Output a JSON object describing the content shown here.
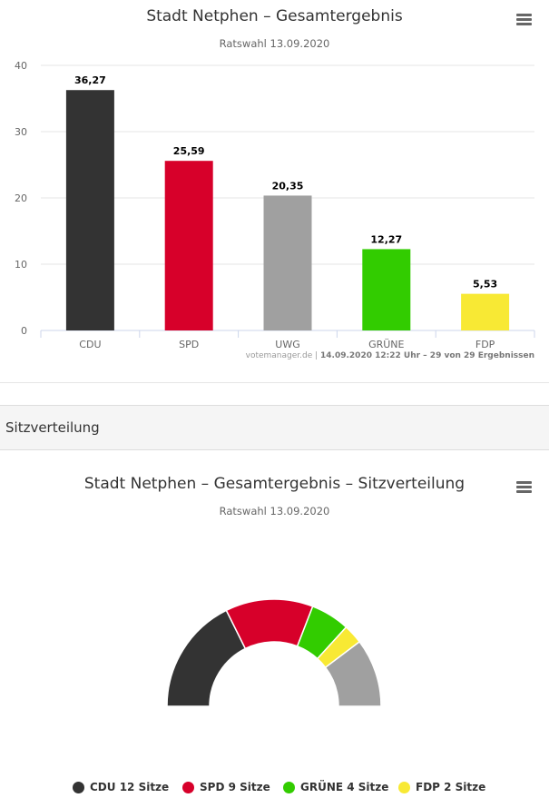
{
  "bar_panel": {
    "title": "Stadt Netphen – Gesamtergebnis",
    "subtitle": "Ratswahl 13.09.2020",
    "credits_site": "votemanager.de",
    "credits_sep": " | ",
    "credits_info": "14.09.2020 12:22 Uhr – 29 von 29 Ergebnissen",
    "menu_icon": "hamburger-menu-icon"
  },
  "section": {
    "label": "Sitzverteilung"
  },
  "seat_panel": {
    "title": "Stadt Netphen – Gesamtergebnis – Sitzverteilung",
    "subtitle": "Ratswahl 13.09.2020",
    "menu_icon": "hamburger-menu-icon"
  },
  "chart_data": [
    {
      "type": "bar",
      "title": "Stadt Netphen – Gesamtergebnis",
      "subtitle": "Ratswahl 13.09.2020",
      "categories": [
        "CDU",
        "SPD",
        "UWG",
        "GRÜNE",
        "FDP"
      ],
      "values": [
        36.27,
        25.59,
        20.35,
        12.27,
        5.53
      ],
      "data_labels": [
        "36,27",
        "25,59",
        "20,35",
        "12,27",
        "5,53"
      ],
      "colors": [
        "#333333",
        "#d7002a",
        "#a0a0a0",
        "#32cc00",
        "#f8e934"
      ],
      "ylim": [
        0,
        40
      ],
      "yticks": [
        0,
        10,
        20,
        30,
        40
      ],
      "grid": true,
      "legend": "none"
    },
    {
      "type": "pie",
      "variant": "semicircle",
      "title": "Stadt Netphen – Gesamtergebnis – Sitzverteilung",
      "subtitle": "Ratswahl 13.09.2020",
      "slices": [
        {
          "name": "CDU",
          "value": 12,
          "color": "#333333",
          "legend": "CDU 12 Sitze"
        },
        {
          "name": "SPD",
          "value": 9,
          "color": "#d7002a",
          "legend": "SPD 9 Sitze"
        },
        {
          "name": "GRÜNE",
          "value": 4,
          "color": "#32cc00",
          "legend": "GRÜNE 4 Sitze"
        },
        {
          "name": "FDP",
          "value": 2,
          "color": "#f8e934",
          "legend": "FDP 2 Sitze"
        },
        {
          "name": "UWG",
          "value": 7,
          "color": "#a0a0a0",
          "legend": ""
        }
      ],
      "legend": "bottom"
    }
  ]
}
